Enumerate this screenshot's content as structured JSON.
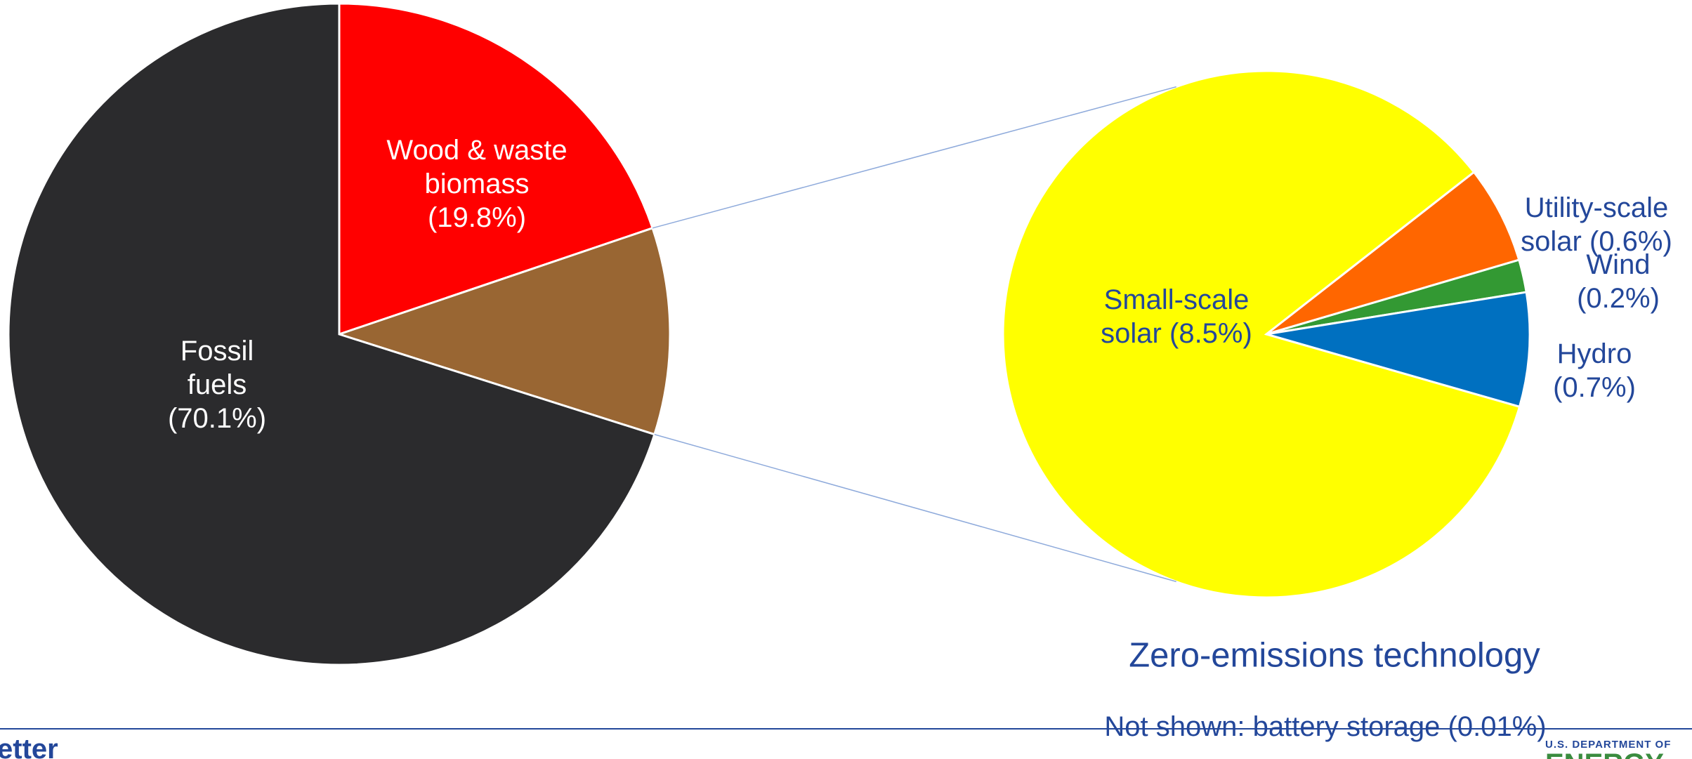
{
  "chart_data": [
    {
      "type": "pie",
      "categories": [
        "Wood & waste biomass",
        null,
        "Fossil fuels"
      ],
      "values": [
        19.8,
        10.1,
        70.1
      ],
      "value_labels": [
        "(19.8%)",
        null,
        "(70.1%)"
      ],
      "colors": [
        "#ff0000",
        "#996633",
        "#2b2b2d"
      ],
      "label_color": "#ffffff"
    },
    {
      "type": "pie",
      "title": "Zero-emissions technology",
      "note": "Not shown: battery storage (0.01%)",
      "categories": [
        "Utility-scale solar",
        "Wind",
        "Hydro",
        "Small-scale solar"
      ],
      "values": [
        0.6,
        0.2,
        0.7,
        8.5
      ],
      "value_labels": [
        "(0.6%)",
        "(0.2%)",
        "(0.7%)",
        "(8.5%)"
      ],
      "colors": [
        "#ff6600",
        "#339933",
        "#0070c0",
        "#ffff00"
      ],
      "label_color": "#23479a"
    }
  ],
  "footer": {
    "left": "etter",
    "logo_top": "U.S. DEPARTMENT OF",
    "logo_bottom": "ENERGY"
  }
}
